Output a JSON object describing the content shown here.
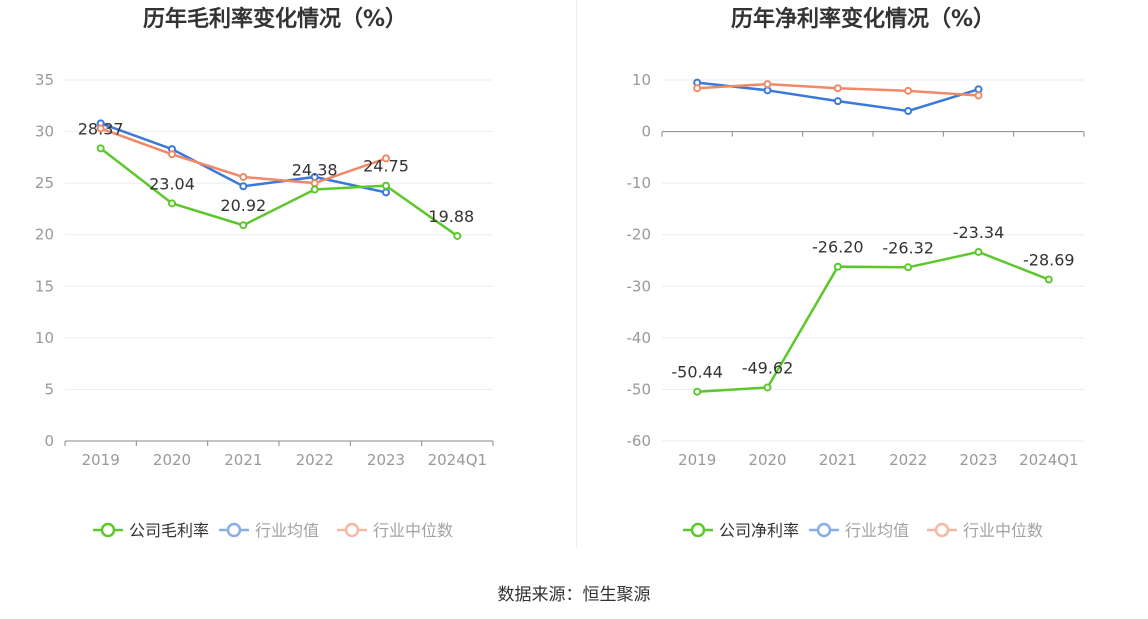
{
  "source_text": "数据来源：恒生聚源",
  "colors": {
    "company": "#5cc82c",
    "industry_avg": "#3a78dc",
    "industry_median": "#f08a66",
    "grid": "#e8ebf3",
    "axis": "#888888",
    "tick": "#999999",
    "title": "#333333"
  },
  "chart_data": [
    {
      "type": "line",
      "title": "历年毛利率变化情况（%）",
      "categories": [
        "2019",
        "2020",
        "2021",
        "2022",
        "2023",
        "2024Q1"
      ],
      "ylim": [
        0,
        35
      ],
      "yticks": [
        0,
        5,
        10,
        15,
        20,
        25,
        30,
        35
      ],
      "grid": true,
      "legend_position": "bottom",
      "series": [
        {
          "name": "公司毛利率",
          "color_key": "company",
          "labeled": true,
          "values": [
            28.37,
            23.04,
            20.92,
            24.38,
            24.75,
            19.88
          ],
          "labels": [
            "28.37",
            "23.04",
            "20.92",
            "24.38",
            "24.75",
            "19.88"
          ]
        },
        {
          "name": "行业均值",
          "color_key": "industry_avg",
          "labeled": false,
          "values": [
            30.8,
            28.3,
            24.7,
            25.6,
            24.1,
            null
          ]
        },
        {
          "name": "行业中位数",
          "color_key": "industry_median",
          "labeled": false,
          "values": [
            30.3,
            27.8,
            25.6,
            25.0,
            27.4,
            null
          ]
        }
      ]
    },
    {
      "type": "line",
      "title": "历年净利率变化情况（%）",
      "categories": [
        "2019",
        "2020",
        "2021",
        "2022",
        "2023",
        "2024Q1"
      ],
      "ylim": [
        -60,
        10
      ],
      "yticks": [
        -60,
        -50,
        -40,
        -30,
        -20,
        -10,
        0,
        10
      ],
      "grid": true,
      "legend_position": "bottom",
      "series": [
        {
          "name": "公司净利率",
          "color_key": "company",
          "labeled": true,
          "values": [
            -50.44,
            -49.62,
            -26.2,
            -26.32,
            -23.34,
            -28.69
          ],
          "labels": [
            "-50.44",
            "-49.62",
            "-26.20",
            "-26.32",
            "-23.34",
            "-28.69"
          ]
        },
        {
          "name": "行业均值",
          "color_key": "industry_avg",
          "labeled": false,
          "values": [
            9.5,
            8.0,
            5.9,
            4.0,
            8.2,
            null
          ]
        },
        {
          "name": "行业中位数",
          "color_key": "industry_median",
          "labeled": false,
          "values": [
            8.4,
            9.2,
            8.4,
            7.9,
            7.0,
            null
          ]
        }
      ]
    }
  ]
}
